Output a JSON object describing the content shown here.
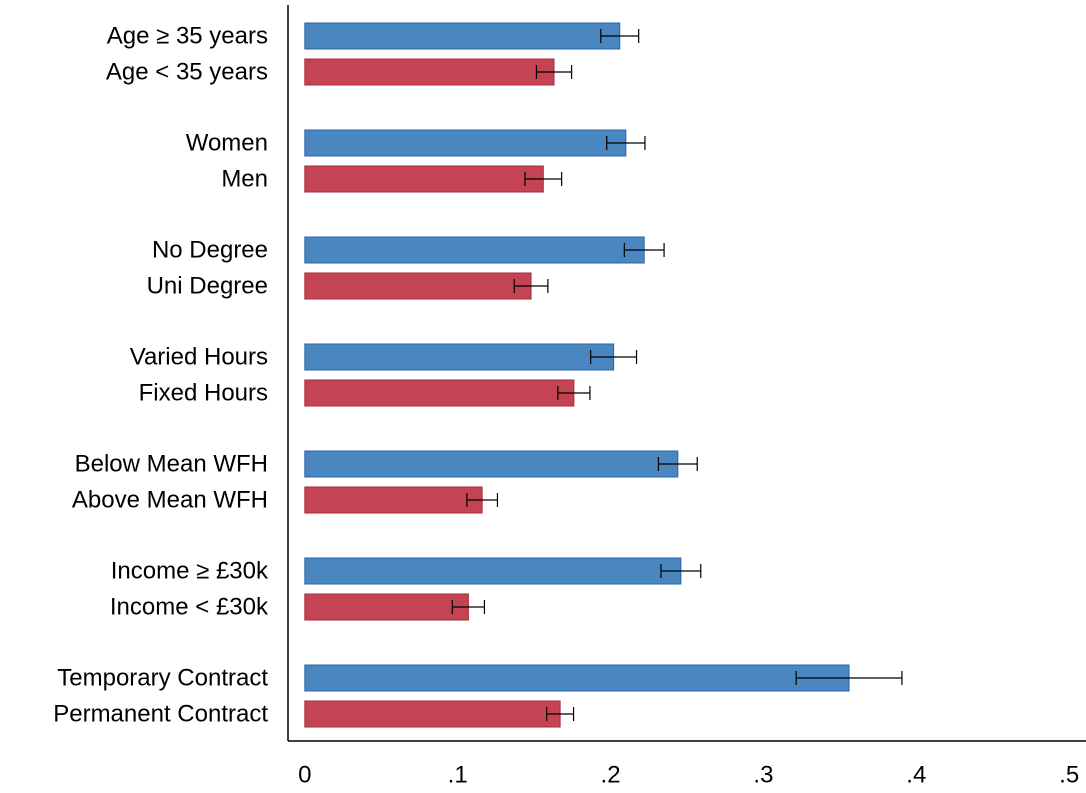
{
  "chart_data": {
    "type": "bar",
    "orientation": "horizontal",
    "categories": [
      "Age ≥ 35 years",
      "Age < 35 years",
      "Women",
      "Men",
      "No Degree",
      "Uni Degree",
      "Varied Hours",
      "Fixed Hours",
      "Below Mean WFH",
      "Above Mean WFH",
      "Income ≥ £30k",
      "Income < £30k",
      "Temporary Contract",
      "Permanent Contract"
    ],
    "values": [
      0.206,
      0.163,
      0.21,
      0.156,
      0.222,
      0.148,
      0.202,
      0.176,
      0.244,
      0.116,
      0.246,
      0.107,
      0.356,
      0.167
    ],
    "errors": [
      0.0124,
      0.0115,
      0.0125,
      0.012,
      0.013,
      0.011,
      0.015,
      0.0105,
      0.0127,
      0.01,
      0.013,
      0.0105,
      0.0346,
      0.0088
    ],
    "colors": [
      "#4a86c0",
      "#c44453"
    ],
    "xlim": [
      -0.011,
      0.511
    ],
    "xticks": [
      0,
      {
        "value": 0.1,
        "label": ".1"
      },
      {
        "value": 0.2,
        "label": ".2"
      },
      {
        "value": 0.3,
        "label": ".3"
      },
      {
        "value": 0.4,
        "label": ".4"
      },
      {
        "value": 0.5,
        "label": ".5"
      }
    ]
  }
}
